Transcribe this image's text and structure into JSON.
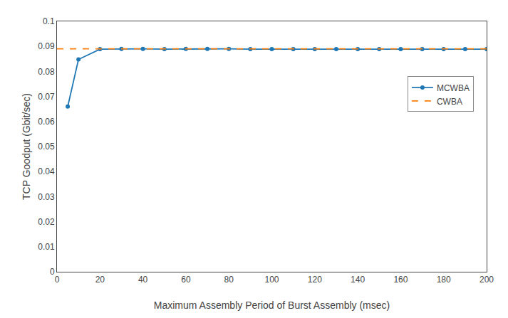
{
  "chart_data": {
    "type": "line",
    "xlabel": "Maximum Assembly Period of Burst Assembly (msec)",
    "ylabel": "TCP Goodput (Gbit/sec)",
    "series": [
      {
        "name": "MCWBA",
        "x": [
          5,
          10,
          20,
          30,
          40,
          50,
          60,
          70,
          80,
          90,
          100,
          110,
          120,
          130,
          140,
          150,
          160,
          170,
          180,
          190,
          200
        ],
        "values": [
          0.066,
          0.0848,
          0.0889,
          0.089,
          0.089,
          0.0889,
          0.089,
          0.089,
          0.089,
          0.0889,
          0.0889,
          0.0889,
          0.0889,
          0.0889,
          0.0889,
          0.0889,
          0.0889,
          0.0889,
          0.0889,
          0.0889,
          0.0889
        ],
        "marker": "circle",
        "line_style": "solid"
      },
      {
        "name": "CWBA",
        "x": [
          0,
          200
        ],
        "values": [
          0.089,
          0.089
        ],
        "line_style": "dashed"
      }
    ],
    "xlim": [
      0,
      200
    ],
    "ylim": [
      0,
      0.1
    ],
    "xticks": [
      0,
      20,
      40,
      60,
      80,
      100,
      120,
      140,
      160,
      180,
      200
    ],
    "yticks": [
      0,
      0.01,
      0.02,
      0.03,
      0.04,
      0.05,
      0.06,
      0.07,
      0.08,
      0.09,
      0.1
    ],
    "grid": false,
    "legend": "upper right"
  }
}
